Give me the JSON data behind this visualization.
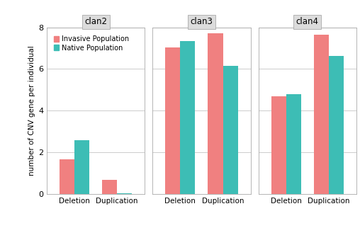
{
  "clans": [
    "clan2",
    "clan3",
    "clan4"
  ],
  "categories": [
    "Deletion",
    "Duplication"
  ],
  "invasive_color": "#F08080",
  "native_color": "#3DBDB5",
  "background_color": "#FFFFFF",
  "panel_header_color": "#DCDCDC",
  "panel_bg_color": "#FFFFFF",
  "grid_color": "#CCCCCC",
  "values": {
    "clan2": {
      "invasive": [
        1.65,
        0.68
      ],
      "native": [
        2.58,
        0.04
      ]
    },
    "clan3": {
      "invasive": [
        7.02,
        7.72
      ],
      "native": [
        7.35,
        6.15
      ]
    },
    "clan4": {
      "invasive": [
        4.68,
        7.65
      ],
      "native": [
        4.8,
        6.62
      ]
    }
  },
  "ylim": [
    0,
    8
  ],
  "yticks": [
    0,
    2,
    4,
    6,
    8
  ],
  "ylabel": "number of CNV gene per individual",
  "legend_labels": [
    "Invasive Population",
    "Native Population"
  ],
  "bar_width": 0.35,
  "figsize": [
    5.08,
    3.22
  ],
  "dpi": 100
}
